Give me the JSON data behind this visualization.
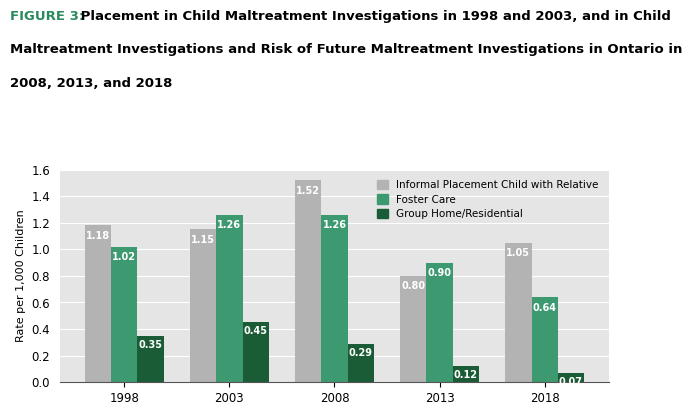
{
  "title_figure": "FIGURE 3:",
  "title_rest_line1": " Placement in Child Maltreatment Investigations in 1998 and 2003, and in Child",
  "title_line2": "Maltreatment Investigations and Risk of Future Maltreatment Investigations in Ontario in",
  "title_line3": "2008, 2013, and 2018",
  "years": [
    1998,
    2003,
    2008,
    2013,
    2018
  ],
  "informal": [
    1.18,
    1.15,
    1.52,
    0.8,
    1.05
  ],
  "foster": [
    1.02,
    1.26,
    1.26,
    0.9,
    0.64
  ],
  "group": [
    0.35,
    0.45,
    0.29,
    0.12,
    0.07
  ],
  "color_informal": "#b3b3b3",
  "color_foster": "#3d9970",
  "color_group": "#1a5c35",
  "ylabel": "Rate per 1,000 Children",
  "ylim": [
    0,
    1.6
  ],
  "yticks": [
    0,
    0.2,
    0.4,
    0.6,
    0.8,
    1.0,
    1.2,
    1.4,
    1.6
  ],
  "legend_labels": [
    "Informal Placement Child with Relative",
    "Foster Care",
    "Group Home/Residential"
  ],
  "bar_width": 0.25,
  "background_color": "#e5e5e5",
  "figure_label_color": "#2a8a5e",
  "title_fontsize": 9.5,
  "label_fontsize": 8,
  "tick_fontsize": 8.5
}
